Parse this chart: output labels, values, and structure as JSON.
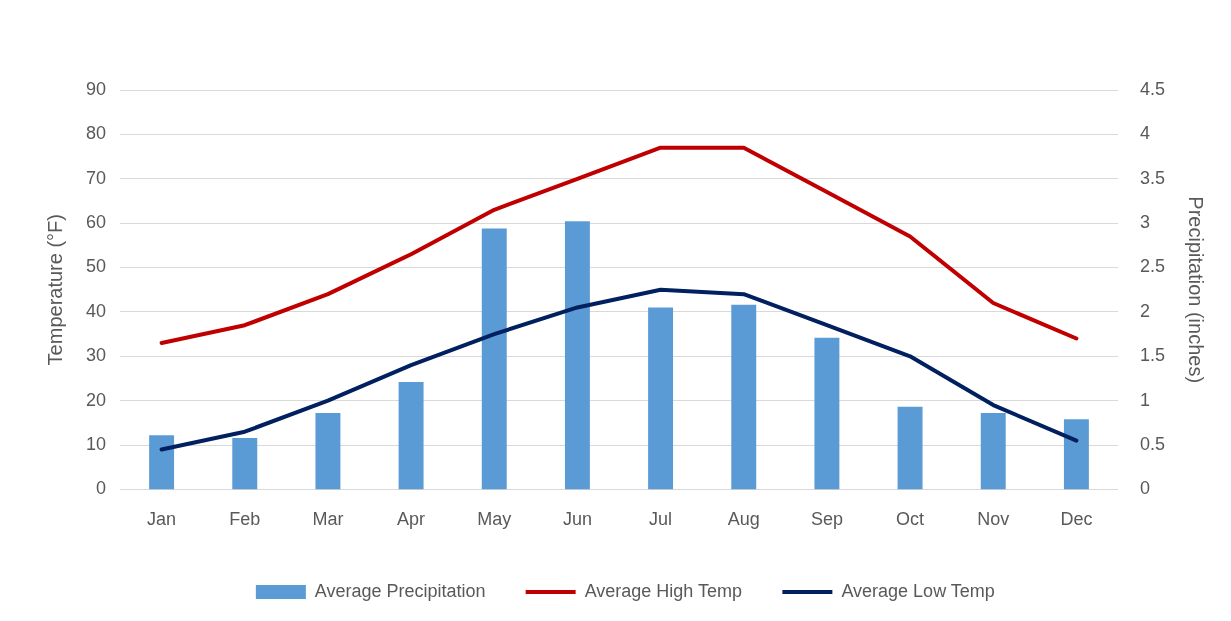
{
  "chart_data": {
    "type": "bar",
    "categories": [
      "Jan",
      "Feb",
      "Mar",
      "Apr",
      "May",
      "Jun",
      "Jul",
      "Aug",
      "Sep",
      "Oct",
      "Nov",
      "Dec"
    ],
    "series": [
      {
        "name": "Average Precipitation",
        "axis": "y2",
        "color": "#5b9bd5",
        "values": [
          0.61,
          0.58,
          0.86,
          1.21,
          2.94,
          3.02,
          2.05,
          2.08,
          1.71,
          0.93,
          0.86,
          0.79
        ]
      },
      {
        "name": "Average High Temp",
        "type": "line",
        "color": "#c00000",
        "values": [
          33,
          37,
          44,
          53,
          63,
          70,
          77,
          77,
          67,
          57,
          42,
          34
        ]
      },
      {
        "name": "Average Low Temp",
        "type": "line",
        "color": "#002060",
        "values": [
          9,
          13,
          20,
          28,
          35,
          41,
          45,
          44,
          37,
          30,
          19,
          11
        ]
      }
    ],
    "ylabel": "Temperature (°F)",
    "y2label": "Precipitation (inches)",
    "ylim": [
      0,
      90
    ],
    "yticks": [
      0,
      10,
      20,
      30,
      40,
      50,
      60,
      70,
      80,
      90
    ],
    "y2lim": [
      0,
      4.5
    ],
    "y2ticks": [
      0,
      0.5,
      1,
      1.5,
      2,
      2.5,
      3,
      3.5,
      4,
      4.5
    ],
    "grid": "y",
    "legend": "bottom",
    "marker": "none",
    "line_style": "solid"
  }
}
